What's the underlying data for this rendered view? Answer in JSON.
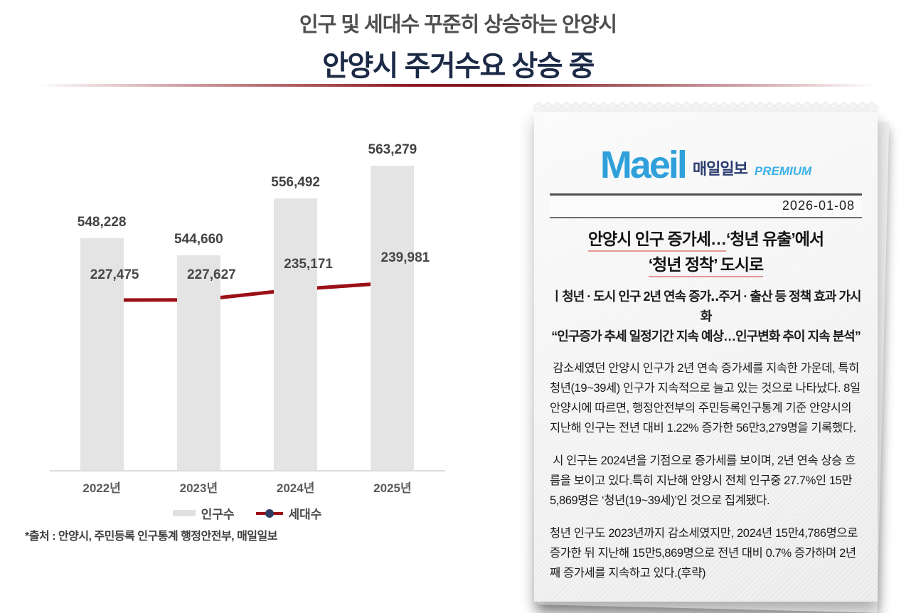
{
  "header": {
    "subtitle": "인구 및 세대수 꾸준히 상승하는 안양시",
    "title": "안양시 주거수요 상승 중"
  },
  "source": "*출처 : 안양시, 주민등록 인구통계 행정안전부, 매일일보",
  "chart_data": {
    "type": "bar",
    "subtype": "bar-line-combo",
    "title": "",
    "categories": [
      "2022년",
      "2023년",
      "2024년",
      "2025년"
    ],
    "series": [
      {
        "name": "인구수",
        "type": "bar",
        "color": "#e4e4e4",
        "values": [
          548228,
          544660,
          556492,
          563279
        ]
      },
      {
        "name": "세대수",
        "type": "line",
        "color": "#9b1016",
        "values": [
          227475,
          227627,
          235171,
          239981
        ]
      }
    ],
    "legend_position": "bottom",
    "grid": false,
    "value_labels": true,
    "legend_dot_color": "#2e3c63"
  },
  "clipping": {
    "logo_en": "Maeil",
    "logo_kr": "매일일보",
    "logo_premium": "PREMIUM",
    "date": "2026-01-08",
    "headline_underlined_1": "안양시 인구 증가세…",
    "headline_rest_1": "‘청년 유출’에서",
    "headline_line2": "‘청년 정착’ 도시로",
    "subhead_line1": "ㅣ청년 · 도시 인구 2년 연속 증가‥주거 · 출산 등 정책 효과 가시화",
    "subhead_line2": "“인구증가 추세 일정기간 지속 예상…인구변화 추이 지속 분석”",
    "paragraphs": [
      " 감소세였던 안양시 인구가 2년 연속 증가세를 지속한 가운데, 특히 청년(19~39세) 인구가 지속적으로 늘고 있는 것으로 나타났다. 8일 안양시에 따르면, 행정안전부의 주민등록인구통계 기준 안양시의 지난해 인구는 전년 대비 1.22% 증가한 56만3,279명을 기록했다.",
      " 시 인구는 2024년을 기점으로 증가세를 보이며, 2년 연속 상승 흐름을 보이고 있다.특히 지난해 안양시 전체 인구중 27.7%인 15만5,869명은 ‘청년(19~39세)’인 것으로 집계됐다.",
      "청년 인구도 2023년까지 감소세였지만, 2024년 15만4,786명으로 증가한 뒤 지난해 15만5,869명으로 전년 대비 0.7% 증가하며 2년째 증가세를 지속하고 있다.(후략)"
    ]
  },
  "colors": {
    "accent_red": "#8e1b24",
    "title_navy": "#1c2a47",
    "line_red": "#9b1016",
    "bar_gray": "#e4e4e4",
    "logo_blue": "#2fa0da",
    "logo_navy": "#2c3e70"
  }
}
